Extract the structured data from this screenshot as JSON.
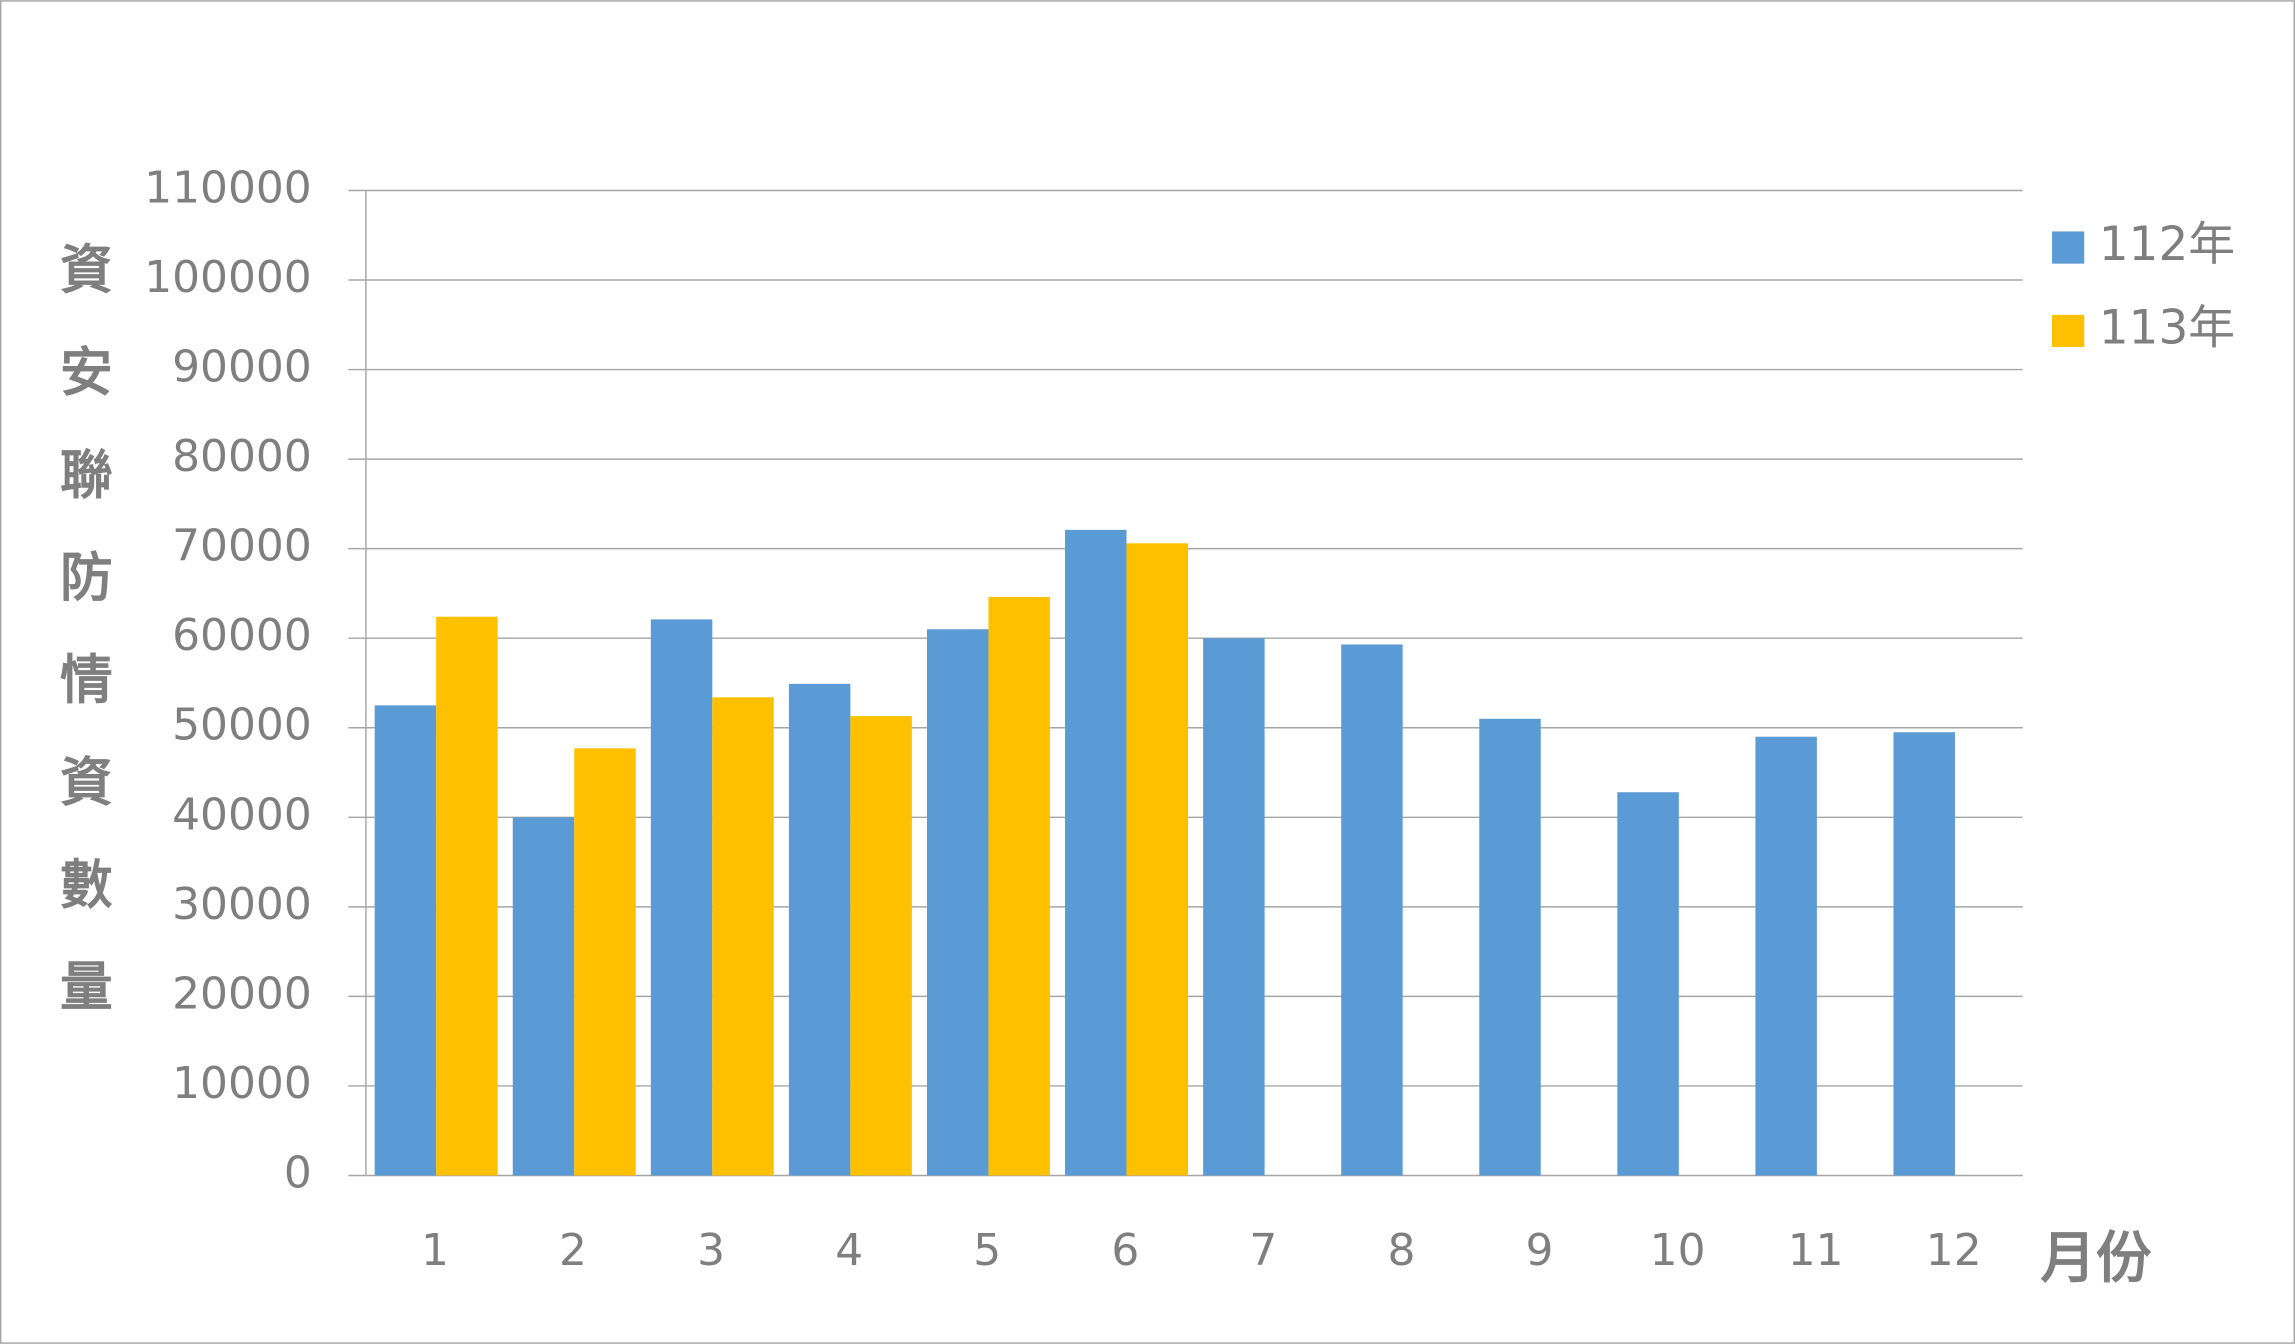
{
  "chart_data": {
    "type": "bar",
    "y_label": "資安聯防情資數量",
    "x_label": "月份",
    "categories": [
      "1",
      "2",
      "3",
      "4",
      "5",
      "6",
      "7",
      "8",
      "9",
      "10",
      "11",
      "12"
    ],
    "series": [
      {
        "name": "112年",
        "color": "#5b9bd5",
        "values": [
          52500,
          40000,
          62100,
          54900,
          61000,
          72100,
          60000,
          59300,
          51000,
          42800,
          49000,
          49500
        ]
      },
      {
        "name": "113年",
        "color": "#ffc000",
        "values": [
          62400,
          47700,
          53400,
          51300,
          64600,
          70600,
          null,
          null,
          null,
          null,
          null,
          null
        ]
      }
    ],
    "ylim": [
      0,
      110000
    ],
    "yticks": [
      0,
      10000,
      20000,
      30000,
      40000,
      50000,
      60000,
      70000,
      80000,
      90000,
      100000,
      110000
    ],
    "grid": true,
    "legend": "right"
  }
}
